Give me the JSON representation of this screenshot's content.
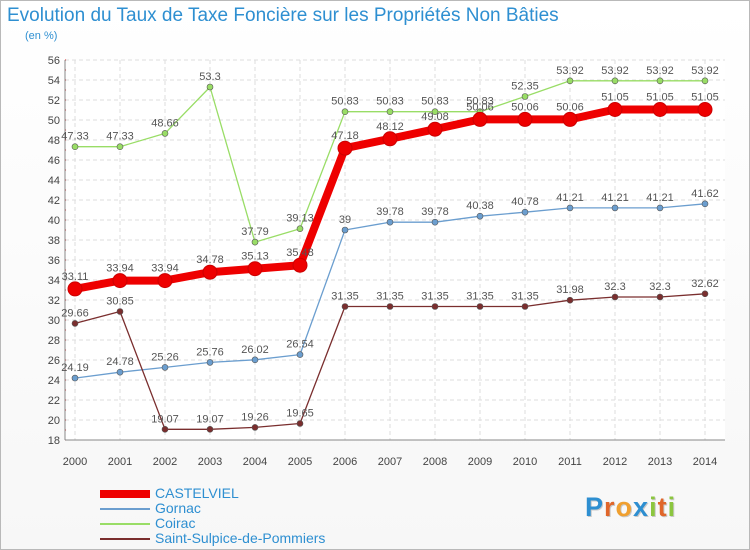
{
  "chart_data": {
    "type": "line",
    "title": "Evolution du Taux de Taxe Foncière sur les Propriétés Non Bâties",
    "subtitle": "(en %)",
    "ylim": [
      18,
      56
    ],
    "y_ticks": [
      18,
      20,
      22,
      24,
      26,
      28,
      30,
      32,
      34,
      36,
      38,
      40,
      42,
      44,
      46,
      48,
      50,
      52,
      54,
      56
    ],
    "x": [
      "2000",
      "2001",
      "2002",
      "2003",
      "2004",
      "2005",
      "2006",
      "2007",
      "2008",
      "2009",
      "2010",
      "2011",
      "2012",
      "2013",
      "2014"
    ],
    "series": [
      {
        "name": "CASTELVIEL",
        "color": "#ee0000",
        "values": [
          33.11,
          33.94,
          33.94,
          34.78,
          35.13,
          35.48,
          47.18,
          48.12,
          49.08,
          50.06,
          50.06,
          50.06,
          51.05,
          51.05,
          51.05
        ],
        "labels": [
          "33.11",
          "33.94",
          "33.94",
          "34.78",
          "35.13",
          "35.48",
          "47.18",
          "48.12",
          "49.08",
          "50.06",
          "50.06",
          "50.06",
          "51.05",
          "51.05",
          "51.05"
        ]
      },
      {
        "name": "Gornac",
        "color": "#6b9ecf",
        "values": [
          24.19,
          24.78,
          25.26,
          25.76,
          26.02,
          26.54,
          39,
          39.78,
          39.78,
          40.38,
          40.78,
          41.21,
          41.21,
          41.21,
          41.62
        ],
        "labels": [
          "24.19",
          "24.78",
          "25.26",
          "25.76",
          "26.02",
          "26.54",
          "39",
          "39.78",
          "39.78",
          "40.38",
          "40.78",
          "41.21",
          "41.21",
          "41.21",
          "41.62"
        ]
      },
      {
        "name": "Coirac",
        "color": "#99dd66",
        "values": [
          47.33,
          47.33,
          48.66,
          53.3,
          37.79,
          39.13,
          50.83,
          50.83,
          50.83,
          50.83,
          52.35,
          53.92,
          53.92,
          53.92,
          53.92
        ],
        "labels": [
          "47.33",
          "47.33",
          "48.66",
          "53.3",
          "37.79",
          "39.13",
          "50.83",
          "50.83",
          "50.83",
          "50.83",
          "52.35",
          "53.92",
          "53.92",
          "53.92",
          "53.92"
        ]
      },
      {
        "name": "Saint-Sulpice-de-Pommiers",
        "color": "#7a2e2e",
        "values": [
          29.66,
          30.85,
          19.07,
          19.07,
          19.26,
          19.65,
          31.35,
          31.35,
          31.35,
          31.35,
          31.35,
          31.98,
          32.3,
          32.3,
          32.62
        ],
        "labels": [
          "29.66",
          "30.85",
          "19.07",
          "19.07",
          "19.26",
          "19.65",
          "31.35",
          "31.35",
          "31.35",
          "31.35",
          "31.35",
          "31.98",
          "32.3",
          "32.3",
          "32.62"
        ]
      }
    ]
  },
  "logo": {
    "letters": [
      "P",
      "r",
      "o",
      "x",
      "i",
      "t",
      "i"
    ],
    "colors": [
      "#2e8fd1",
      "#e0662a",
      "#f0a030",
      "#2e8fd1",
      "#8cc63f",
      "#e0662a",
      "#8cc63f"
    ]
  }
}
